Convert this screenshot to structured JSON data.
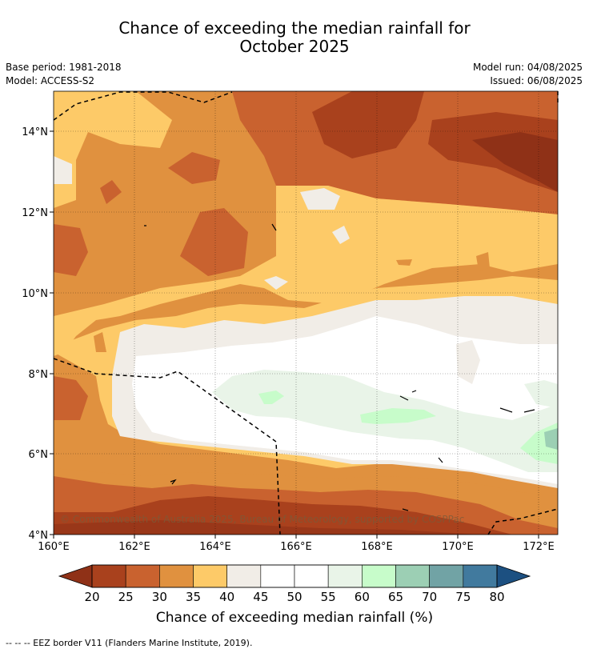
{
  "header": {
    "title_line1": "Chance of exceeding the median rainfall for",
    "title_line2": "October 2025",
    "base_period": "Base period: 1981-2018",
    "model": "Model: ACCESS-S2",
    "model_run": "Model run: 04/08/2025",
    "issued": "Issued: 06/08/2025"
  },
  "map": {
    "copyright": "© Commonwealth of Australia 2025, Bureau of Meteorology, supported by COSPPac",
    "lat_ticks": [
      "14°N",
      "12°N",
      "10°N",
      "8°N",
      "6°N",
      "4°N"
    ],
    "lon_ticks": [
      "160°E",
      "162°E",
      "164°E",
      "166°E",
      "168°E",
      "170°E",
      "172°E"
    ]
  },
  "colorbar": {
    "title": "Chance of exceeding median rainfall (%)",
    "labels": [
      "20",
      "25",
      "30",
      "35",
      "40",
      "45",
      "50",
      "55",
      "60",
      "65",
      "70",
      "75",
      "80"
    ],
    "colors": [
      "#a9411d",
      "#c9622f",
      "#e0913f",
      "#fdca68",
      "#f1ede7",
      "#ffffff",
      "#ffffff",
      "#e9f4e8",
      "#c7fcca",
      "#9ccfb4",
      "#71a3a5",
      "#417a9e"
    ],
    "low_color": "#8f3117",
    "high_color": "#1c5081"
  },
  "footnote": "--  --  -- EEZ border V11 (Flanders Marine Institute, 2019)."
}
